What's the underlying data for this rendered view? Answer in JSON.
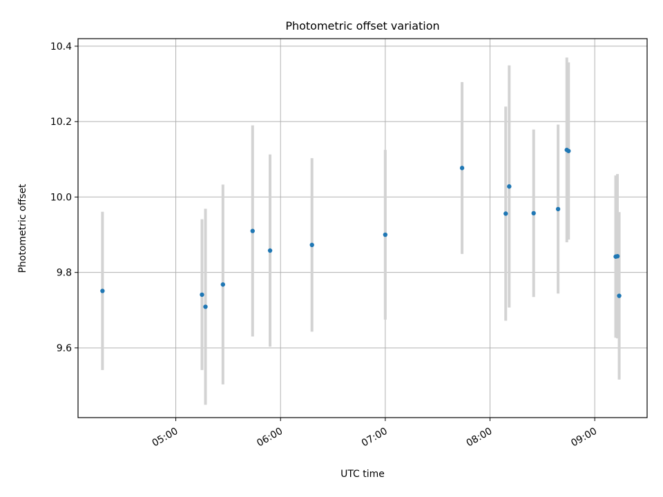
{
  "chart_data": {
    "type": "scatter",
    "title": "Photometric offset variation",
    "xlabel": "UTC time",
    "ylabel": "Photometric offset",
    "x_tick_labels": [
      "05:00",
      "06:00",
      "07:00",
      "08:00",
      "09:00"
    ],
    "y_tick_labels": [
      "9.6",
      "9.8",
      "10.0",
      "10.2",
      "10.4"
    ],
    "x_ticks": [
      "05:00",
      "06:00",
      "07:00",
      "08:00",
      "09:00"
    ],
    "y_ticks": [
      9.6,
      9.8,
      10.0,
      10.2,
      10.4
    ],
    "xlim": [
      "04:04",
      "09:30"
    ],
    "ylim": [
      9.415,
      10.42
    ],
    "grid": true,
    "errorbar_color": "#d3d3d3",
    "marker_color": "#1f77b4",
    "points": [
      {
        "x": "04:18",
        "y": 9.751,
        "err": 0.21
      },
      {
        "x": "05:15",
        "y": 9.741,
        "err": 0.2
      },
      {
        "x": "05:17",
        "y": 9.709,
        "err": 0.26
      },
      {
        "x": "05:27",
        "y": 9.768,
        "err": 0.265
      },
      {
        "x": "05:44",
        "y": 9.91,
        "err": 0.28
      },
      {
        "x": "05:54",
        "y": 9.858,
        "err": 0.255
      },
      {
        "x": "06:18",
        "y": 9.873,
        "err": 0.23
      },
      {
        "x": "07:00",
        "y": 9.9,
        "err": 0.225
      },
      {
        "x": "07:44",
        "y": 10.077,
        "err": 0.228
      },
      {
        "x": "08:09",
        "y": 9.956,
        "err": 0.284
      },
      {
        "x": "08:11",
        "y": 10.028,
        "err": 0.321
      },
      {
        "x": "08:25",
        "y": 9.957,
        "err": 0.222
      },
      {
        "x": "08:39",
        "y": 9.968,
        "err": 0.224
      },
      {
        "x": "08:44",
        "y": 10.125,
        "err": 0.245
      },
      {
        "x": "08:45",
        "y": 10.122,
        "err": 0.235
      },
      {
        "x": "09:12",
        "y": 9.842,
        "err": 0.215
      },
      {
        "x": "09:13",
        "y": 9.843,
        "err": 0.218
      },
      {
        "x": "09:14",
        "y": 9.738,
        "err": 0.222
      }
    ]
  }
}
